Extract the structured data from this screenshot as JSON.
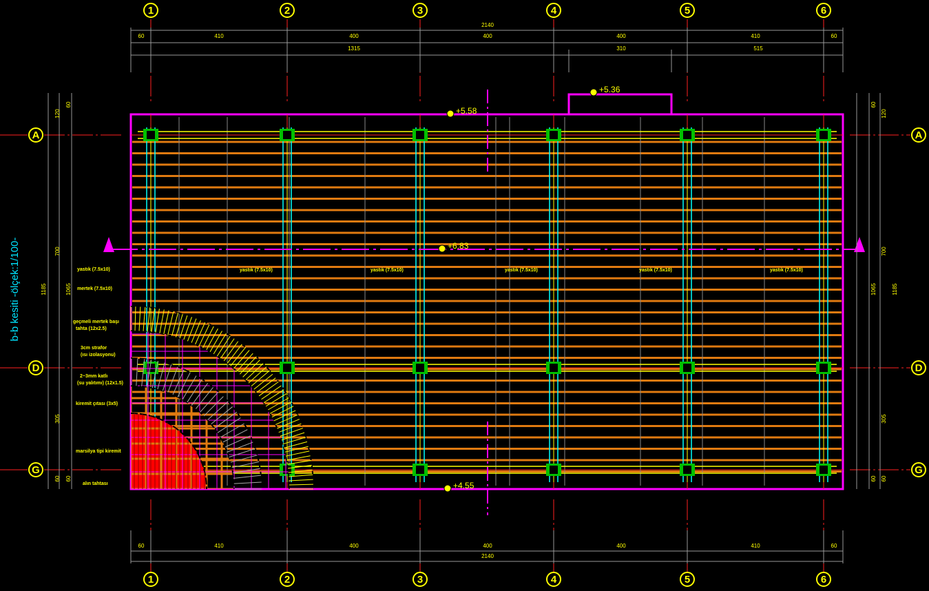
{
  "title": "b-b kesiti  -ölçek:1/100-",
  "grid": {
    "columns": [
      "1",
      "2",
      "3",
      "4",
      "5",
      "6"
    ],
    "rows": [
      "A",
      "D",
      "G"
    ]
  },
  "dims": {
    "top_total": "2140",
    "top": [
      "60",
      "410",
      "400",
      "400",
      "400",
      "410",
      "60"
    ],
    "second": [
      "1315",
      "310",
      "515"
    ],
    "bottom": [
      "60",
      "410",
      "400",
      "400",
      "400",
      "410",
      "60"
    ],
    "bottom_total": "2140",
    "left": [
      "120",
      "60",
      "700",
      "1185",
      "1065",
      "305",
      "60",
      "60"
    ],
    "right": [
      "60",
      "120",
      "700",
      "1065",
      "1185",
      "305",
      "60",
      "60"
    ]
  },
  "elevations": [
    "+5.58",
    "+5.36",
    "+6.83",
    "+4.55"
  ],
  "legend": [
    "yastık (7.5x10)",
    "mertek (7.5x10)",
    "geçmeli mertek başı",
    "tahta (12x2.5)",
    "3cm strafor",
    "(ısı izolasyonu)",
    "2~3mm katlı",
    "(su yalıtımı) (12x1.5)",
    "kiremit çıtası (3x5)",
    "marsilya tipi kiremit",
    "alın tahtası"
  ],
  "roof_labels": [
    "yastık (7.5x10)",
    "yastık (7.5x10)",
    "yastık (7.5x10)",
    "yastık (7.5x10)",
    "yastık (7.5x10)",
    "yastık (7.5x10)"
  ]
}
